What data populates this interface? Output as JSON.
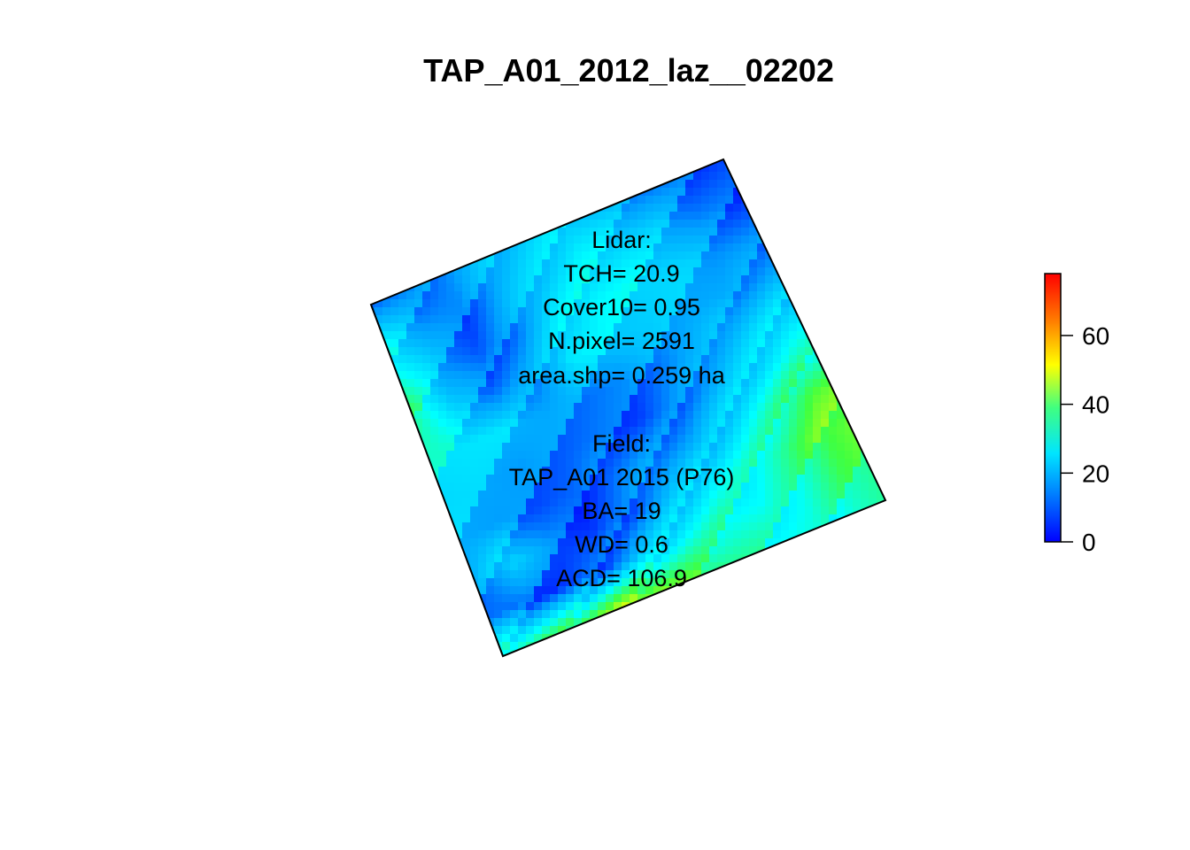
{
  "chart_data": {
    "type": "heatmap",
    "title": "TAP_A01_2012_laz__02202",
    "xlabel": "",
    "ylabel": "",
    "legend": {
      "placement": "right",
      "colormap": [
        "#0000ff",
        "#00a0ff",
        "#00ffff",
        "#40ff40",
        "#ffff00",
        "#ff8000",
        "#ff0000"
      ],
      "range": [
        0,
        78
      ],
      "ticks": [
        "0",
        "20",
        "40",
        "60"
      ],
      "tick_values": [
        0,
        20,
        40,
        60
      ]
    },
    "cell_values_grid": [
      [
        12,
        10,
        14,
        18,
        20,
        22,
        16,
        12,
        8,
        6
      ],
      [
        24,
        14,
        8,
        16,
        20,
        24,
        22,
        18,
        10,
        6
      ],
      [
        30,
        16,
        6,
        12,
        22,
        26,
        24,
        20,
        14,
        10
      ],
      [
        36,
        18,
        10,
        14,
        24,
        22,
        18,
        16,
        12,
        14
      ],
      [
        28,
        24,
        20,
        14,
        12,
        10,
        12,
        14,
        18,
        22
      ],
      [
        22,
        18,
        12,
        10,
        8,
        6,
        10,
        16,
        22,
        28
      ],
      [
        18,
        12,
        8,
        6,
        10,
        12,
        14,
        22,
        30,
        40
      ],
      [
        14,
        22,
        10,
        4,
        8,
        16,
        24,
        28,
        34,
        42
      ],
      [
        10,
        6,
        4,
        8,
        18,
        26,
        30,
        26,
        30,
        36
      ],
      [
        30,
        34,
        38,
        46,
        44,
        38,
        32,
        28,
        26,
        30
      ]
    ],
    "annotations": [
      "Lidar:",
      "TCH= 20.9",
      "Cover10= 0.95",
      "N.pixel= 2591",
      "area.shp= 0.259 ha",
      "",
      "Field:",
      "TAP_A01 2015 (P76)",
      "BA= 19",
      "WD= 0.6",
      "ACD= 106.9"
    ]
  }
}
